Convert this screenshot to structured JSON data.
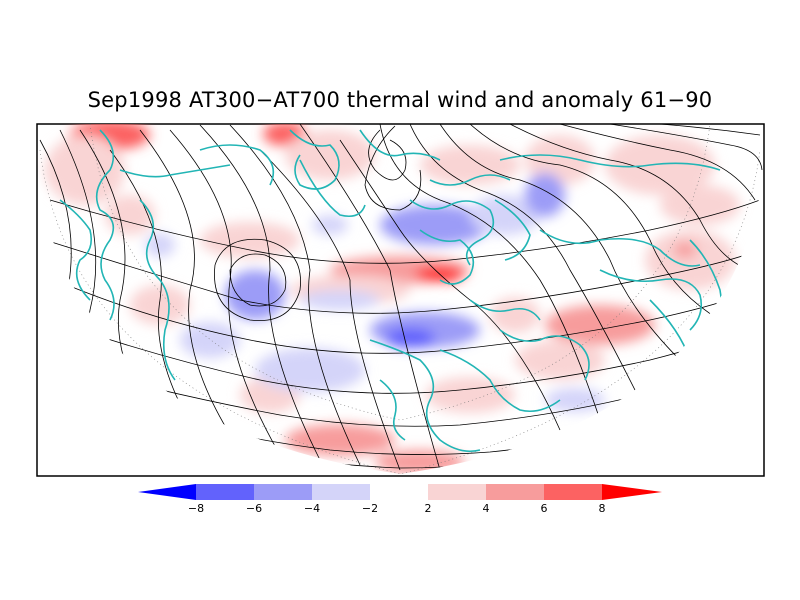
{
  "title": "Sep1998 AT300−AT700 thermal wind and anomaly 61−90",
  "colorbar": {
    "labels": [
      "−8",
      "−6",
      "−4",
      "−2",
      "2",
      "4",
      "6",
      "8"
    ],
    "colors": [
      "#0000ff",
      "#6262fc",
      "#9c9cf7",
      "#d4d4f9",
      "#ffffff",
      "#f9d4d4",
      "#f79c9c",
      "#fc6262",
      "#ff0000"
    ]
  },
  "colors": {
    "coastline": "#22b5b5",
    "streamline": "#000000",
    "frame": "#000000"
  }
}
